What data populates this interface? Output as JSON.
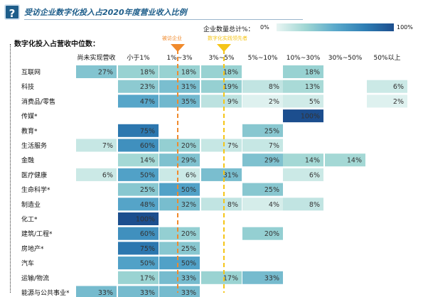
{
  "header": {
    "title": "受访企业数字化投入占2020年度营业收入比例",
    "icon": "question-icon"
  },
  "row_header_title": "数字化投入占营收中位数：",
  "legend": {
    "title": "企业数量总计%：",
    "min_label": "0%",
    "max_label": "100%",
    "color_min": "#e8f5f3",
    "color_max": "#1c4e8e"
  },
  "markers": [
    {
      "label": "被访企业",
      "color": "#f08a2c",
      "column_index": 2
    },
    {
      "label": "数字化实践领先者",
      "color": "#f5c518",
      "column_index": 3
    }
  ],
  "chart_data": {
    "type": "heatmap",
    "columns": [
      "尚未实现营收",
      "小于1%",
      "1%~3%",
      "3%~5%",
      "5%~10%",
      "10%~30%",
      "30%~50%",
      "50%以上"
    ],
    "rows": [
      "互联网",
      "科技",
      "消费品/零售",
      "传媒*",
      "教育*",
      "生活服务",
      "金融",
      "医疗健康",
      "生命科学*",
      "制造业",
      "化工*",
      "建筑/工程*",
      "房地产*",
      "汽车",
      "运输/物流",
      "能源与公共事业*"
    ],
    "values": [
      [
        27,
        18,
        18,
        18,
        null,
        18,
        null,
        null
      ],
      [
        null,
        23,
        31,
        19,
        8,
        13,
        null,
        6
      ],
      [
        null,
        47,
        35,
        9,
        2,
        5,
        null,
        2
      ],
      [
        null,
        null,
        null,
        null,
        null,
        100,
        null,
        null
      ],
      [
        null,
        75,
        null,
        null,
        25,
        null,
        null,
        null
      ],
      [
        7,
        60,
        20,
        7,
        7,
        null,
        null,
        null
      ],
      [
        null,
        14,
        29,
        null,
        29,
        14,
        14,
        null
      ],
      [
        6,
        50,
        6,
        31,
        null,
        6,
        null,
        null
      ],
      [
        null,
        25,
        50,
        null,
        25,
        null,
        null,
        null
      ],
      [
        null,
        48,
        32,
        8,
        4,
        8,
        null,
        null
      ],
      [
        null,
        100,
        null,
        null,
        null,
        null,
        null,
        null
      ],
      [
        null,
        60,
        20,
        null,
        20,
        null,
        null,
        null
      ],
      [
        null,
        75,
        25,
        null,
        null,
        null,
        null,
        null
      ],
      [
        null,
        50,
        50,
        null,
        null,
        null,
        null,
        null
      ],
      [
        null,
        17,
        33,
        17,
        33,
        null,
        null,
        null
      ],
      [
        33,
        33,
        33,
        null,
        null,
        null,
        null,
        null
      ]
    ],
    "value_suffix": "%"
  }
}
